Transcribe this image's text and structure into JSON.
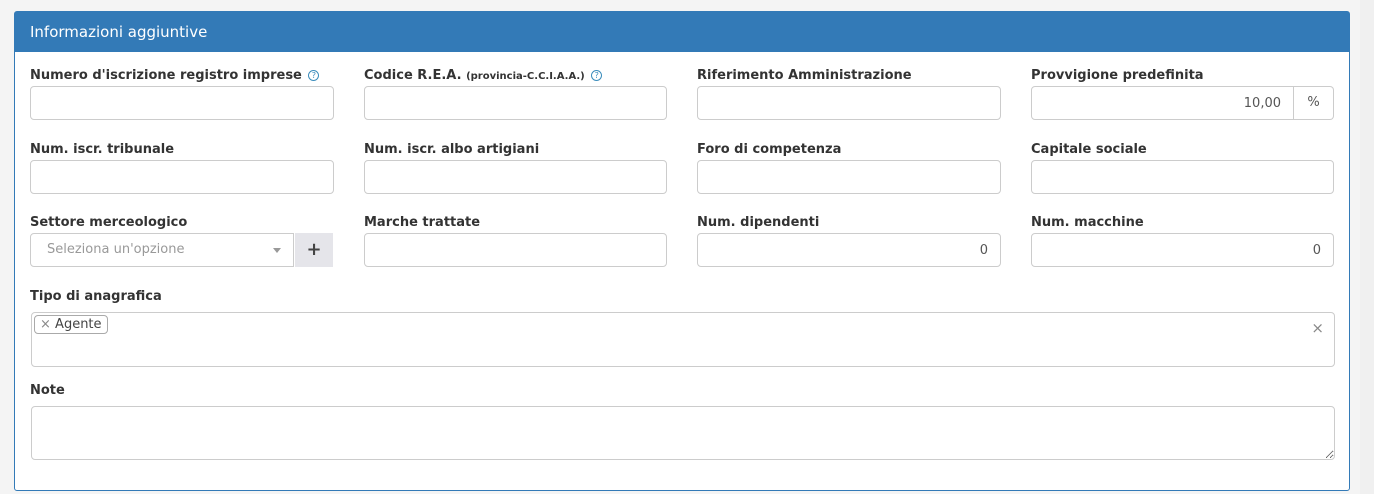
{
  "panel": {
    "title": "Informazioni aggiuntive"
  },
  "fields": {
    "registro": {
      "label": "Numero d'iscrizione registro imprese",
      "value": ""
    },
    "rea": {
      "label": "Codice R.E.A.",
      "sublabel": "(provincia-C.C.I.A.A.)",
      "value": ""
    },
    "rif_amm": {
      "label": "Riferimento Amministrazione",
      "value": ""
    },
    "provvigione": {
      "label": "Provvigione predefinita",
      "value": "10,00",
      "addon": "%"
    },
    "tribunale": {
      "label": "Num. iscr. tribunale",
      "value": ""
    },
    "artigiani": {
      "label": "Num. iscr. albo artigiani",
      "value": ""
    },
    "foro": {
      "label": "Foro di competenza",
      "value": ""
    },
    "capitale": {
      "label": "Capitale sociale",
      "value": ""
    },
    "settore": {
      "label": "Settore merceologico",
      "placeholder": "Seleziona un'opzione",
      "add": "+"
    },
    "marche": {
      "label": "Marche trattate",
      "value": ""
    },
    "dipendenti": {
      "label": "Num. dipendenti",
      "value": "0"
    },
    "macchine": {
      "label": "Num. macchine",
      "value": "0"
    },
    "tipo": {
      "label": "Tipo di anagrafica",
      "tags": [
        "Agente"
      ],
      "clear": "×",
      "tag_remove": "×"
    },
    "note": {
      "label": "Note",
      "value": ""
    }
  },
  "help_icon": "?"
}
